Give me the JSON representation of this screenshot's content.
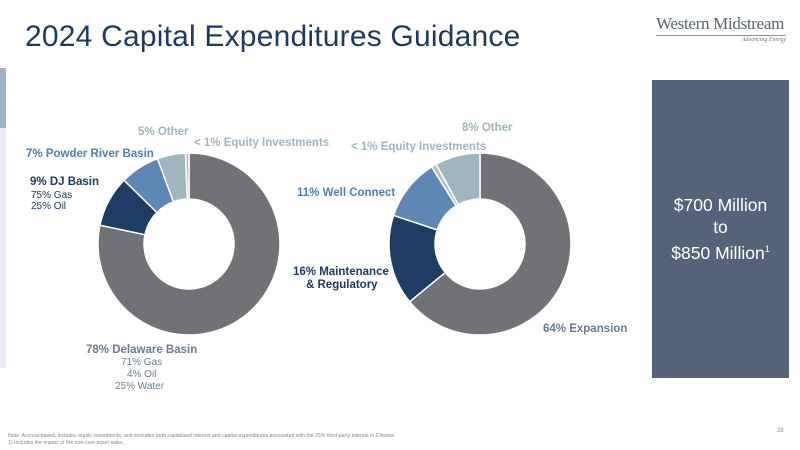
{
  "slide": {
    "title": "2024 Capital Expenditures Guidance",
    "logo_name": "Western Midstream",
    "logo_tagline": "Advancing Energy",
    "guidance_line1": "$700 Million",
    "guidance_line2": "to",
    "guidance_line3": "$850 Million",
    "guidance_footnote_mark": "1",
    "footnote_line1": "Note: Accrual-based, includes equity investments, and excludes both capitalized interest and capital expenditures associated with the 25% third-party interest in Chipeta.",
    "footnote_line2": "1) Includes the impact of the non-core asset sales.",
    "page_number": "28"
  },
  "labels": {
    "left_delaware": "78% Delaware Basin",
    "left_delaware_gas": "71% Gas",
    "left_delaware_oil": "4% Oil",
    "left_delaware_water": "25% Water",
    "left_dj": "9% DJ Basin",
    "left_dj_gas": "75% Gas",
    "left_dj_oil": "25% Oil",
    "left_powder": "7% Powder River Basin",
    "left_other": "5% Other",
    "left_equity": "< 1% Equity Investments",
    "right_expansion": "64% Expansion",
    "right_maintenance_1": "16% Maintenance",
    "right_maintenance_2": "& Regulatory",
    "right_well": "11% Well Connect",
    "right_equity": "< 1% Equity Investments",
    "right_other": "8% Other"
  },
  "chart_data": [
    {
      "type": "pie",
      "subtype": "donut",
      "slices": [
        {
          "label": "Delaware Basin",
          "value": 78,
          "color": "#707275"
        },
        {
          "label": "DJ Basin",
          "value": 9,
          "color": "#1e3c64"
        },
        {
          "label": "Powder River Basin",
          "value": 7,
          "color": "#5e87b5"
        },
        {
          "label": "Other",
          "value": 5,
          "color": "#9fb6c1"
        },
        {
          "label": "Equity Investments",
          "value": 0.6,
          "color": "#b9bcbf"
        }
      ]
    },
    {
      "type": "pie",
      "subtype": "donut",
      "slices": [
        {
          "label": "Expansion",
          "value": 64,
          "color": "#707275"
        },
        {
          "label": "Maintenance & Regulatory",
          "value": 16,
          "color": "#1e3c64"
        },
        {
          "label": "Well Connect",
          "value": 11,
          "color": "#5e87b5"
        },
        {
          "label": "Equity Investments",
          "value": 0.9,
          "color": "#b9bcbf"
        },
        {
          "label": "Other",
          "value": 8,
          "color": "#9fb6c1"
        }
      ]
    }
  ]
}
